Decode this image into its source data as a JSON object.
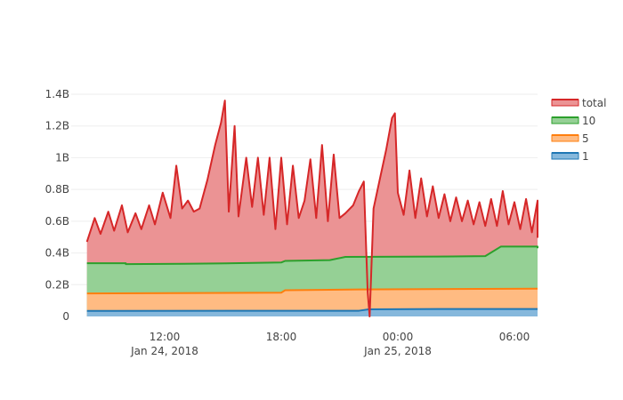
{
  "chart_data": {
    "type": "area",
    "stacked": true,
    "title": "",
    "xlabel": "",
    "ylabel": "",
    "x_range_hours": [
      -4.0,
      20.0
    ],
    "ylim": [
      0,
      1.45
    ],
    "y_ticks": [
      {
        "value": 0,
        "label": "0"
      },
      {
        "value": 0.2,
        "label": "0.2B"
      },
      {
        "value": 0.4,
        "label": "0.4B"
      },
      {
        "value": 0.6,
        "label": "0.6B"
      },
      {
        "value": 0.8,
        "label": "0.8B"
      },
      {
        "value": 1.0,
        "label": "1B"
      },
      {
        "value": 1.2,
        "label": "1.2B"
      },
      {
        "value": 1.4,
        "label": "1.4B"
      }
    ],
    "x_ticks": [
      {
        "hour": 0,
        "time": "12:00",
        "date": "Jan 24, 2018"
      },
      {
        "hour": 6,
        "time": "18:00",
        "date": ""
      },
      {
        "hour": 12,
        "time": "00:00",
        "date": "Jan 25, 2018"
      },
      {
        "hour": 18,
        "time": "06:00",
        "date": ""
      }
    ],
    "legend_position": "top-right",
    "series": [
      {
        "name": "1",
        "line_color": "#1f77b4",
        "fill_color": "#86b8dc",
        "cumulative_points": [
          [
            -4.0,
            0.035
          ],
          [
            10.0,
            0.036
          ],
          [
            10.5,
            0.045
          ],
          [
            14.0,
            0.047
          ],
          [
            20.0,
            0.047
          ]
        ]
      },
      {
        "name": "5",
        "line_color": "#ff7f0e",
        "fill_color": "#ffbb82",
        "cumulative_points": [
          [
            -4.0,
            0.145
          ],
          [
            6.0,
            0.15
          ],
          [
            6.2,
            0.165
          ],
          [
            10.0,
            0.17
          ],
          [
            20.0,
            0.175
          ]
        ]
      },
      {
        "name": "10",
        "line_color": "#2ca02c",
        "fill_color": "#95d095",
        "cumulative_points": [
          [
            -4.0,
            0.335
          ],
          [
            -2.0,
            0.335
          ],
          [
            -2.0,
            0.33
          ],
          [
            1.0,
            0.332
          ],
          [
            3.5,
            0.335
          ],
          [
            6.0,
            0.34
          ],
          [
            6.2,
            0.35
          ],
          [
            8.5,
            0.355
          ],
          [
            9.3,
            0.375
          ],
          [
            14.0,
            0.377
          ],
          [
            16.5,
            0.38
          ],
          [
            17.3,
            0.44
          ],
          [
            19.5,
            0.44
          ],
          [
            19.8,
            0.43
          ],
          [
            20.0,
            0.43
          ]
        ]
      },
      {
        "name": "total",
        "line_color": "#d62728",
        "fill_color": "#eb9394",
        "cumulative_points": [
          [
            -4.0,
            0.47
          ],
          [
            -3.6,
            0.62
          ],
          [
            -3.3,
            0.52
          ],
          [
            -2.9,
            0.66
          ],
          [
            -2.6,
            0.54
          ],
          [
            -2.2,
            0.7
          ],
          [
            -1.9,
            0.53
          ],
          [
            -1.5,
            0.65
          ],
          [
            -1.2,
            0.55
          ],
          [
            -0.8,
            0.7
          ],
          [
            -0.5,
            0.58
          ],
          [
            -0.1,
            0.78
          ],
          [
            0.3,
            0.62
          ],
          [
            0.6,
            0.95
          ],
          [
            0.9,
            0.68
          ],
          [
            1.2,
            0.73
          ],
          [
            1.5,
            0.66
          ],
          [
            1.8,
            0.68
          ],
          [
            2.2,
            0.86
          ],
          [
            2.6,
            1.08
          ],
          [
            2.9,
            1.22
          ],
          [
            3.1,
            1.36
          ],
          [
            3.3,
            0.66
          ],
          [
            3.6,
            1.2
          ],
          [
            3.8,
            0.63
          ],
          [
            4.2,
            1.0
          ],
          [
            4.5,
            0.69
          ],
          [
            4.8,
            1.0
          ],
          [
            5.1,
            0.64
          ],
          [
            5.4,
            1.0
          ],
          [
            5.7,
            0.55
          ],
          [
            6.0,
            1.0
          ],
          [
            6.3,
            0.58
          ],
          [
            6.6,
            0.95
          ],
          [
            6.9,
            0.62
          ],
          [
            7.2,
            0.73
          ],
          [
            7.5,
            0.99
          ],
          [
            7.8,
            0.62
          ],
          [
            8.1,
            1.08
          ],
          [
            8.4,
            0.6
          ],
          [
            8.7,
            1.02
          ],
          [
            9.0,
            0.62
          ],
          [
            9.3,
            0.65
          ],
          [
            9.7,
            0.7
          ],
          [
            10.0,
            0.79
          ],
          [
            10.25,
            0.85
          ],
          [
            10.45,
            0.15
          ],
          [
            10.55,
            0.0
          ],
          [
            10.75,
            0.68
          ],
          [
            11.1,
            0.88
          ],
          [
            11.4,
            1.05
          ],
          [
            11.7,
            1.25
          ],
          [
            11.85,
            1.28
          ],
          [
            12.0,
            0.78
          ],
          [
            12.3,
            0.64
          ],
          [
            12.6,
            0.92
          ],
          [
            12.9,
            0.62
          ],
          [
            13.2,
            0.87
          ],
          [
            13.5,
            0.63
          ],
          [
            13.8,
            0.82
          ],
          [
            14.1,
            0.62
          ],
          [
            14.4,
            0.77
          ],
          [
            14.7,
            0.6
          ],
          [
            15.0,
            0.75
          ],
          [
            15.3,
            0.6
          ],
          [
            15.6,
            0.73
          ],
          [
            15.9,
            0.58
          ],
          [
            16.2,
            0.72
          ],
          [
            16.5,
            0.57
          ],
          [
            16.8,
            0.74
          ],
          [
            17.1,
            0.57
          ],
          [
            17.4,
            0.79
          ],
          [
            17.7,
            0.58
          ],
          [
            18.0,
            0.72
          ],
          [
            18.3,
            0.55
          ],
          [
            18.6,
            0.74
          ],
          [
            18.9,
            0.53
          ],
          [
            19.2,
            0.73
          ],
          [
            19.5,
            0.5
          ],
          [
            19.8,
            0.67
          ],
          [
            20.0,
            0.54
          ]
        ]
      }
    ]
  }
}
